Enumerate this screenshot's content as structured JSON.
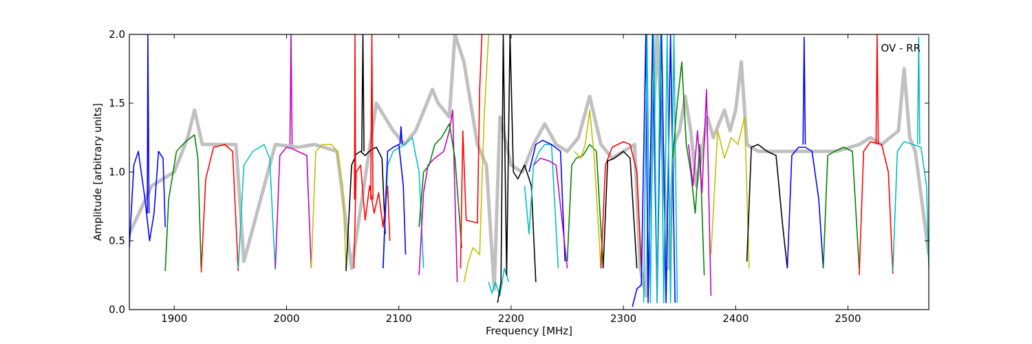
{
  "chart_data": {
    "type": "line",
    "title": "",
    "xlabel": "Frequency [MHz]",
    "ylabel": "Amplitude [arbitrary units]",
    "xlim": [
      1860,
      2572
    ],
    "ylim": [
      0.0,
      2.0
    ],
    "xticks": [
      1900,
      2000,
      2100,
      2200,
      2300,
      2400,
      2500
    ],
    "xtick_labels": [
      "1900",
      "2000",
      "2100",
      "2200",
      "2300",
      "2400",
      "2500"
    ],
    "yticks": [
      0.0,
      0.5,
      1.0,
      1.5,
      2.0
    ],
    "ytick_labels": [
      "0.0",
      "0.5",
      "1.0",
      "1.5",
      "2.0"
    ],
    "grid": false,
    "annotation": "OV - RR",
    "colors": {
      "background_trace": "#c0c0c0",
      "blue": "#0000ff",
      "green": "#008000",
      "red": "#ff0000",
      "cyan": "#00bfbf",
      "magenta": "#bf00bf",
      "olive": "#bfbf00",
      "black": "#000000"
    },
    "background_trace": {
      "x": [
        1860,
        1880,
        1900,
        1912,
        1918,
        1925,
        1940,
        1955,
        1962,
        1990,
        2010,
        2025,
        2045,
        2058,
        2080,
        2095,
        2105,
        2115,
        2125,
        2130,
        2135,
        2145,
        2150,
        2158,
        2170,
        2178,
        2185,
        2190,
        2200,
        2210,
        2220,
        2230,
        2240,
        2250,
        2260,
        2270,
        2280,
        2290,
        2300,
        2310,
        2315,
        2320,
        2330,
        2340,
        2345,
        2350,
        2355,
        2360,
        2365,
        2375,
        2380,
        2390,
        2395,
        2400,
        2405,
        2410,
        2420,
        2440,
        2450,
        2470,
        2490,
        2510,
        2520,
        2530,
        2545,
        2550,
        2555,
        2560,
        2572
      ],
      "y": [
        0.55,
        0.9,
        1.0,
        1.25,
        1.45,
        1.2,
        1.2,
        1.2,
        0.35,
        1.2,
        1.18,
        1.2,
        1.15,
        0.3,
        1.5,
        1.3,
        1.2,
        1.3,
        1.5,
        1.6,
        1.5,
        1.4,
        2.0,
        1.8,
        1.2,
        1.05,
        0.15,
        1.4,
        1.05,
        1.0,
        1.2,
        1.35,
        1.2,
        1.15,
        1.25,
        1.55,
        1.2,
        1.1,
        1.15,
        1.2,
        0.3,
        0.1,
        2.0,
        0.3,
        1.2,
        1.3,
        1.55,
        1.3,
        0.9,
        1.4,
        1.25,
        1.45,
        1.3,
        1.45,
        1.8,
        1.2,
        1.15,
        1.15,
        1.15,
        1.15,
        1.15,
        1.2,
        1.25,
        1.2,
        1.3,
        1.75,
        1.25,
        1.15,
        0.4
      ]
    },
    "series": [
      {
        "color": "blue",
        "x": [
          1860,
          1864,
          1868,
          1874,
          1878,
          1882,
          1886,
          1890,
          1892
        ],
        "y": [
          0.45,
          1.05,
          1.15,
          0.8,
          0.5,
          0.7,
          1.15,
          1.1,
          0.6
        ]
      },
      {
        "color": "blue",
        "x": [
          1876,
          1876.5,
          1877.5
        ],
        "y": [
          0.7,
          2.0,
          0.7
        ]
      },
      {
        "color": "green",
        "x": [
          1892,
          1895,
          1902,
          1910,
          1918,
          1921,
          1924
        ],
        "y": [
          0.28,
          0.8,
          1.15,
          1.22,
          1.27,
          1.1,
          0.3
        ]
      },
      {
        "color": "red",
        "x": [
          1924,
          1928,
          1935,
          1945,
          1952,
          1957
        ],
        "y": [
          0.27,
          0.95,
          1.18,
          1.2,
          1.15,
          0.28
        ]
      },
      {
        "color": "cyan",
        "x": [
          1957,
          1962,
          1970,
          1980,
          1985,
          1988,
          1990
        ],
        "y": [
          0.3,
          1.05,
          1.15,
          1.2,
          1.1,
          0.6,
          0.29
        ]
      },
      {
        "color": "magenta",
        "x": [
          1990,
          1994,
          2000,
          2005,
          2010,
          2018,
          2022
        ],
        "y": [
          0.3,
          1.12,
          1.18,
          1.17,
          1.15,
          1.12,
          0.3
        ]
      },
      {
        "color": "magenta",
        "x": [
          2003,
          2004,
          2005
        ],
        "y": [
          1.2,
          2.0,
          1.2
        ]
      },
      {
        "color": "olive",
        "x": [
          2022,
          2026,
          2032,
          2040,
          2045,
          2050,
          2053
        ],
        "y": [
          0.3,
          1.15,
          1.2,
          1.2,
          1.15,
          0.9,
          0.3
        ]
      },
      {
        "color": "black",
        "x": [
          2053,
          2058,
          2062,
          2066,
          2070,
          2075,
          2080,
          2085,
          2088
        ],
        "y": [
          0.28,
          1.05,
          1.13,
          1.15,
          1.12,
          1.16,
          1.18,
          1.1,
          0.55
        ]
      },
      {
        "color": "black",
        "x": [
          2067,
          2068,
          2069
        ],
        "y": [
          1.15,
          2.0,
          1.15
        ]
      },
      {
        "color": "red",
        "x": [
          2060,
          2062,
          2066,
          2070,
          2074,
          2078,
          2082,
          2086,
          2090,
          2092
        ],
        "y": [
          0.3,
          1.0,
          1.05,
          0.65,
          0.9,
          0.7,
          0.85,
          0.6,
          0.9,
          0.5
        ]
      },
      {
        "color": "red",
        "x": [
          2060.5,
          2061,
          2061.5
        ],
        "y": [
          0.8,
          2.0,
          0.8
        ]
      },
      {
        "color": "red",
        "x": [
          2075,
          2076,
          2077
        ],
        "y": [
          0.8,
          2.0,
          0.8
        ]
      },
      {
        "color": "cyan",
        "x": [
          2086,
          2090,
          2095,
          2105,
          2112,
          2118,
          2122
        ],
        "y": [
          0.3,
          1.05,
          1.15,
          1.2,
          1.25,
          1.0,
          0.3
        ]
      },
      {
        "color": "blue",
        "x": [
          2086,
          2090,
          2095,
          2100,
          2104,
          2106
        ],
        "y": [
          0.3,
          1.15,
          1.18,
          1.2,
          0.9,
          0.4
        ]
      },
      {
        "color": "blue",
        "x": [
          2101,
          2102,
          2103
        ],
        "y": [
          1.2,
          1.33,
          1.2
        ]
      },
      {
        "color": "magenta",
        "x": [
          2118,
          2122,
          2126,
          2132,
          2140,
          2145,
          2148,
          2152
        ],
        "y": [
          0.25,
          0.85,
          1.05,
          1.1,
          1.15,
          1.3,
          1.45,
          0.2
        ]
      },
      {
        "color": "green",
        "x": [
          2118,
          2122,
          2127,
          2132,
          2138,
          2145,
          2150,
          2156
        ],
        "y": [
          0.6,
          1.0,
          1.05,
          1.2,
          1.25,
          1.35,
          1.1,
          0.45
        ]
      },
      {
        "color": "red",
        "x": [
          2155,
          2157,
          2160,
          2170,
          2172,
          2174
        ],
        "y": [
          0.3,
          1.3,
          0.65,
          0.63,
          1.6,
          2.0
        ]
      },
      {
        "color": "olive",
        "x": [
          2158,
          2162,
          2166,
          2172,
          2176,
          2180
        ],
        "y": [
          0.2,
          0.35,
          0.45,
          0.4,
          1.4,
          2.0
        ]
      },
      {
        "color": "cyan",
        "x": [
          2180,
          2183,
          2186,
          2190,
          2194,
          2198
        ],
        "y": [
          0.2,
          0.12,
          0.2,
          0.1,
          0.3,
          0.2
        ]
      },
      {
        "color": "black",
        "x": [
          2188,
          2191,
          2193,
          2196,
          2199,
          2202,
          2206,
          2212,
          2218,
          2222
        ],
        "y": [
          0.05,
          0.2,
          2.0,
          0.25,
          2.0,
          1.0,
          0.95,
          1.05,
          0.9,
          0.2
        ]
      },
      {
        "color": "cyan",
        "x": [
          2212,
          2216,
          2220,
          2225,
          2230,
          2236,
          2242
        ],
        "y": [
          0.9,
          0.55,
          1.05,
          1.15,
          1.2,
          1.2,
          0.3
        ]
      },
      {
        "color": "blue",
        "x": [
          2216,
          2222,
          2228,
          2236,
          2244,
          2248
        ],
        "y": [
          1.0,
          1.2,
          1.23,
          1.2,
          1.15,
          0.35
        ]
      },
      {
        "color": "magenta",
        "x": [
          2220,
          2226,
          2234,
          2240,
          2246,
          2250
        ],
        "y": [
          1.05,
          1.1,
          1.08,
          1.05,
          0.6,
          0.3
        ]
      },
      {
        "color": "green",
        "x": [
          2250,
          2254,
          2258,
          2264,
          2270,
          2276,
          2282
        ],
        "y": [
          0.35,
          1.05,
          1.1,
          1.12,
          1.2,
          1.15,
          0.3
        ]
      },
      {
        "color": "olive",
        "x": [
          2256,
          2262,
          2266,
          2270,
          2274,
          2280
        ],
        "y": [
          1.15,
          1.1,
          1.2,
          1.45,
          1.1,
          0.3
        ]
      },
      {
        "color": "red",
        "x": [
          2280,
          2284,
          2290,
          2300,
          2306,
          2312,
          2316
        ],
        "y": [
          0.3,
          1.05,
          1.18,
          1.22,
          1.2,
          1.0,
          0.3
        ]
      },
      {
        "color": "black",
        "x": [
          2282,
          2286,
          2292,
          2300,
          2306,
          2312
        ],
        "y": [
          0.3,
          1.08,
          1.1,
          1.15,
          1.1,
          0.3
        ]
      },
      {
        "color": "blue",
        "x": [
          2308,
          2312,
          2316,
          2320,
          2322,
          2326,
          2330,
          2334,
          2338,
          2342,
          2346
        ],
        "y": [
          0.02,
          0.15,
          0.18,
          2.0,
          0.05,
          2.0,
          0.05,
          2.0,
          0.05,
          2.0,
          0.05
        ]
      },
      {
        "color": "cyan",
        "x": [
          2318,
          2321,
          2324,
          2327,
          2330,
          2333,
          2336,
          2339,
          2342,
          2345,
          2348
        ],
        "y": [
          0.05,
          2.0,
          0.05,
          2.0,
          0.05,
          2.0,
          0.05,
          2.0,
          0.05,
          2.0,
          0.05
        ]
      },
      {
        "color": "green",
        "x": [
          2344,
          2348,
          2352,
          2356,
          2360,
          2364,
          2368,
          2372
        ],
        "y": [
          1.1,
          1.5,
          1.8,
          1.2,
          1.0,
          0.7,
          1.2,
          0.25
        ]
      },
      {
        "color": "magenta",
        "x": [
          2358,
          2362,
          2366,
          2370,
          2374,
          2378
        ],
        "y": [
          1.2,
          0.9,
          1.3,
          0.85,
          1.6,
          0.1
        ]
      },
      {
        "color": "olive",
        "x": [
          2378,
          2384,
          2390,
          2396,
          2402,
          2408,
          2412
        ],
        "y": [
          0.4,
          1.3,
          1.1,
          1.25,
          1.2,
          1.4,
          0.3
        ]
      },
      {
        "color": "black",
        "x": [
          2410,
          2414,
          2420,
          2428,
          2436,
          2442,
          2446
        ],
        "y": [
          0.35,
          1.18,
          1.2,
          1.15,
          1.12,
          0.6,
          0.3
        ]
      },
      {
        "color": "blue",
        "x": [
          2446,
          2450,
          2456,
          2462,
          2468,
          2474,
          2478
        ],
        "y": [
          0.3,
          1.12,
          1.18,
          1.18,
          1.15,
          0.8,
          0.3
        ]
      },
      {
        "color": "blue",
        "x": [
          2460,
          2461,
          2462
        ],
        "y": [
          1.2,
          1.98,
          1.2
        ]
      },
      {
        "color": "green",
        "x": [
          2478,
          2482,
          2488,
          2496,
          2504,
          2510
        ],
        "y": [
          0.3,
          1.12,
          1.15,
          1.18,
          1.15,
          0.3
        ]
      },
      {
        "color": "red",
        "x": [
          2510,
          2514,
          2520,
          2530,
          2536,
          2540
        ],
        "y": [
          0.25,
          1.15,
          1.22,
          1.2,
          1.0,
          0.26
        ]
      },
      {
        "color": "red",
        "x": [
          2525,
          2526,
          2527
        ],
        "y": [
          1.2,
          2.0,
          1.2
        ]
      },
      {
        "color": "cyan",
        "x": [
          2540,
          2544,
          2550,
          2558,
          2565,
          2570,
          2572
        ],
        "y": [
          0.28,
          1.15,
          1.22,
          1.2,
          1.18,
          0.9,
          0.3
        ]
      },
      {
        "color": "cyan",
        "x": [
          2562,
          2563,
          2564
        ],
        "y": [
          1.2,
          1.98,
          1.2
        ]
      }
    ]
  }
}
